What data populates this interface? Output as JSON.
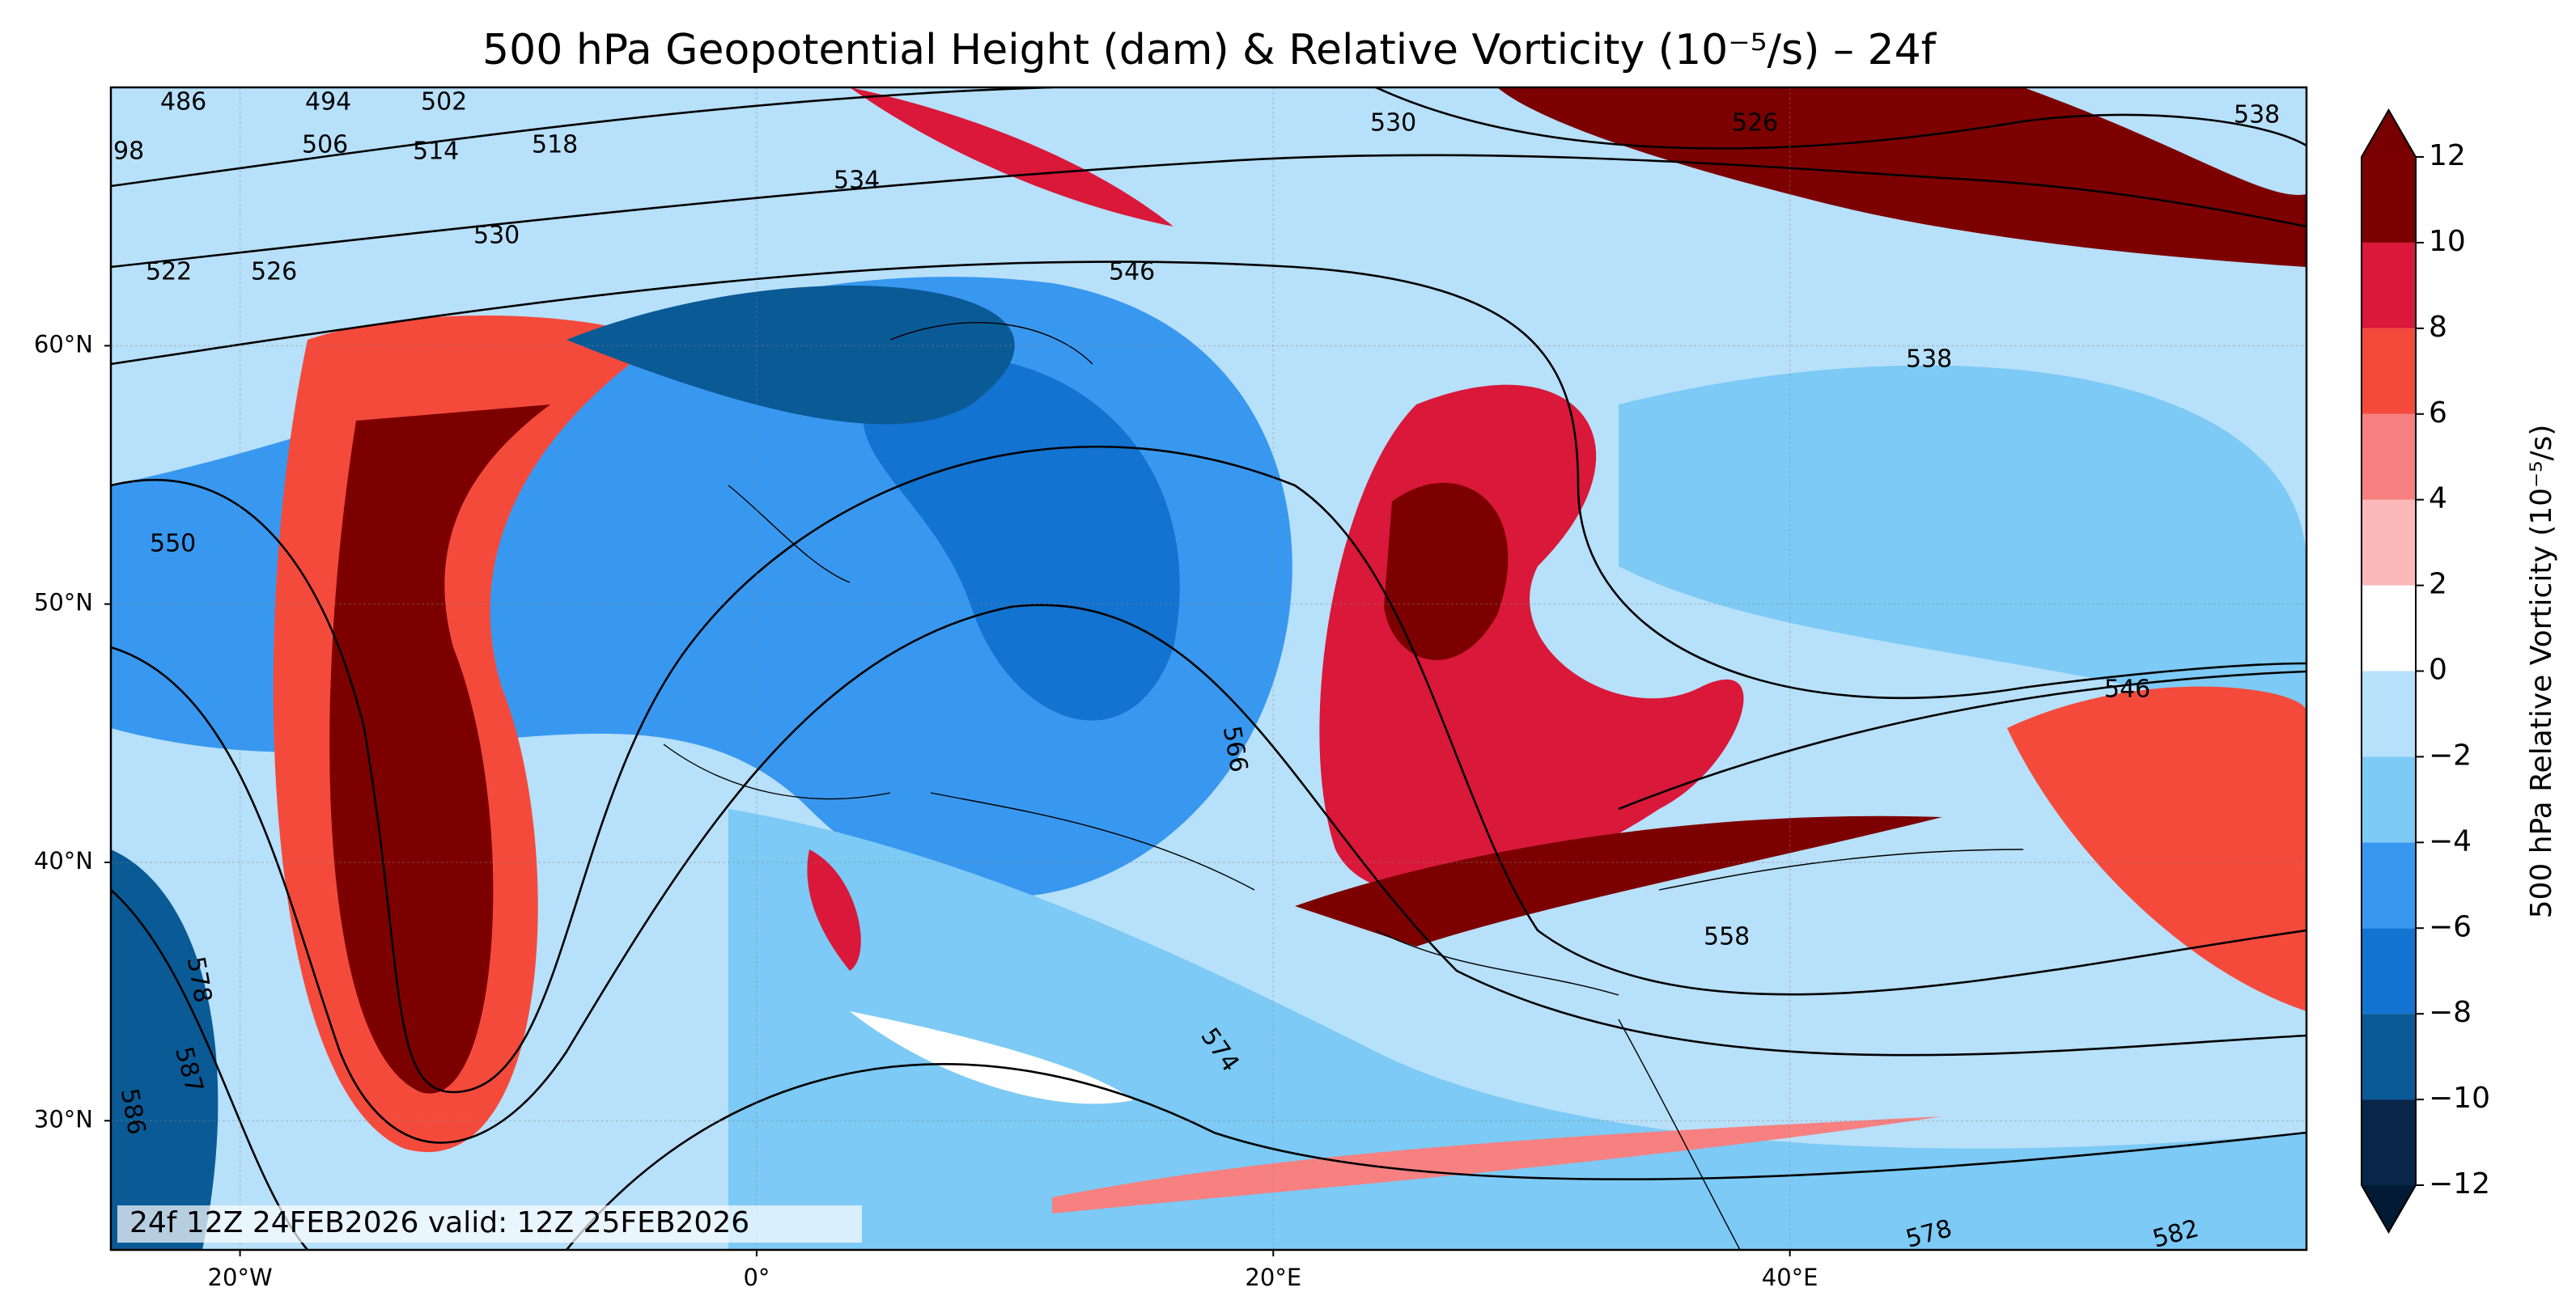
{
  "chart_data": {
    "type": "contour-map",
    "title": "500 hPa Geopotential Height (dam) & Relative Vorticity (10⁻⁵/s) – 24f",
    "xlim": [
      -25,
      60
    ],
    "xticks": [
      {
        "value": -20,
        "label": "20°W"
      },
      {
        "value": 0,
        "label": "0°"
      },
      {
        "value": 20,
        "label": "20°E"
      },
      {
        "value": 40,
        "label": "40°E"
      }
    ],
    "ylim": [
      25,
      70
    ],
    "yticks": [
      {
        "value": 30,
        "label": "30°N"
      },
      {
        "value": 40,
        "label": "40°N"
      },
      {
        "value": 50,
        "label": "50°N"
      },
      {
        "value": 60,
        "label": "60°N"
      }
    ],
    "grid": true,
    "colorbar": {
      "label": "500 hPa Relative Vorticity (10⁻⁵/s)",
      "levels": [
        {
          "value": -12,
          "label": "−12"
        },
        {
          "value": -10,
          "label": "−10"
        },
        {
          "value": -8,
          "label": "−8"
        },
        {
          "value": -6,
          "label": "−6"
        },
        {
          "value": -4,
          "label": "−4"
        },
        {
          "value": -2,
          "label": "−2"
        },
        0,
        2,
        4,
        6,
        8,
        10,
        12
      ],
      "colors": [
        "#08254a",
        "#0a5a96",
        "#1273d0",
        "#3898f0",
        "#7ccaf5",
        "#b7e0fa",
        "#ffffff",
        "#fbb9b9",
        "#f78080",
        "#f44a3c",
        "#d9183a",
        "#7d0000"
      ],
      "extend_colors": [
        "#021a33",
        "#780000"
      ]
    },
    "contour_labels": [
      486,
      494,
      502,
      98,
      506,
      514,
      518,
      530,
      534,
      522,
      526,
      530,
      546,
      526,
      538,
      538,
      550,
      546,
      558,
      566,
      574,
      578,
      587,
      586,
      578,
      582
    ],
    "annotation": "24f 12Z 24FEB2026 valid: 12Z 25FEB2026"
  }
}
